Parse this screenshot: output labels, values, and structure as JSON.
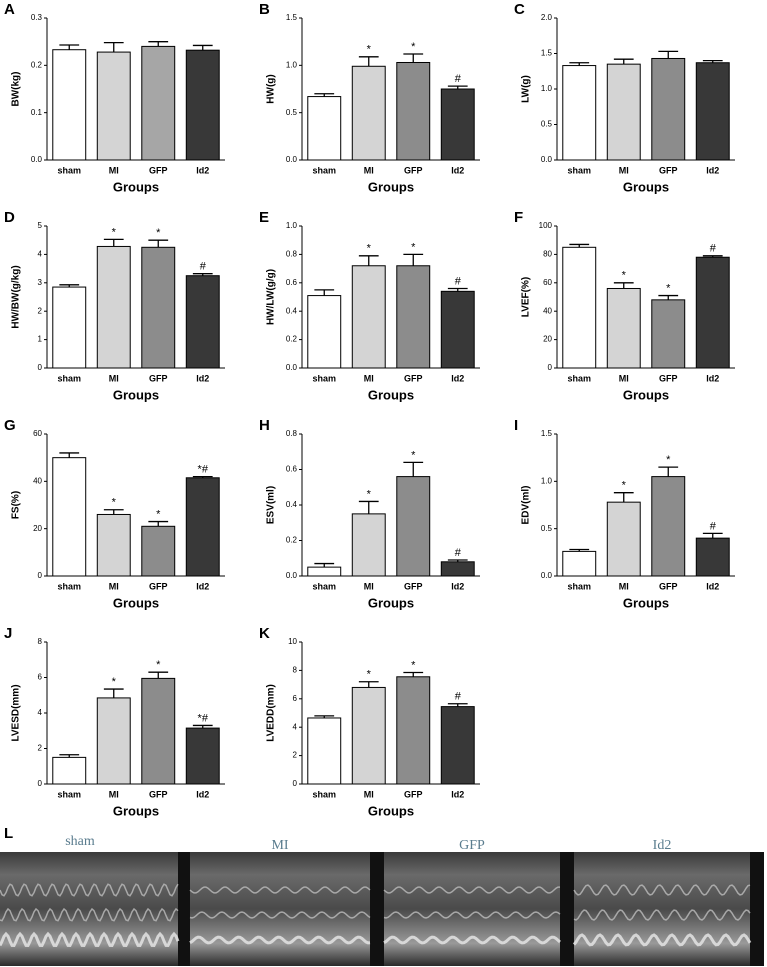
{
  "chart_data": [
    {
      "type": "bar",
      "panel": "A",
      "ylabel": "BW(kg)",
      "xlabel": "Groups",
      "categories": [
        "sham",
        "MI",
        "GFP",
        "Id2"
      ],
      "values": [
        0.233,
        0.228,
        0.24,
        0.232
      ],
      "errors": [
        0.01,
        0.02,
        0.01,
        0.01
      ],
      "annotations": [
        null,
        null,
        null,
        null
      ],
      "colors": [
        "#ffffff",
        "#d4d4d4",
        "#a6a6a6",
        "#383838"
      ],
      "ylim": [
        0,
        0.3
      ],
      "yticks": [
        {
          "value": 0,
          "label": "0.0"
        },
        0.1,
        0.2,
        0.3
      ]
    },
    {
      "type": "bar",
      "panel": "B",
      "ylabel": "HW(g)",
      "xlabel": "Groups",
      "categories": [
        "sham",
        "MI",
        "GFP",
        "Id2"
      ],
      "values": [
        0.67,
        0.99,
        1.03,
        0.75
      ],
      "errors": [
        0.03,
        0.1,
        0.09,
        0.03
      ],
      "annotations": [
        null,
        "*",
        "*",
        "#"
      ],
      "colors": [
        "#ffffff",
        "#d4d4d4",
        "#8c8c8c",
        "#383838"
      ],
      "ylim": [
        0,
        1.5
      ],
      "yticks": [
        {
          "value": 0,
          "label": "0.0"
        },
        0.5,
        {
          "value": 1,
          "label": "1.0"
        },
        1.5
      ]
    },
    {
      "type": "bar",
      "panel": "C",
      "ylabel": "LW(g)",
      "xlabel": "Groups",
      "categories": [
        "sham",
        "MI",
        "GFP",
        "Id2"
      ],
      "values": [
        1.33,
        1.35,
        1.43,
        1.37
      ],
      "errors": [
        0.04,
        0.07,
        0.1,
        0.03
      ],
      "annotations": [
        null,
        null,
        null,
        null
      ],
      "colors": [
        "#ffffff",
        "#d4d4d4",
        "#8c8c8c",
        "#383838"
      ],
      "ylim": [
        0,
        2
      ],
      "yticks": [
        {
          "value": 0,
          "label": "0.0"
        },
        0.5,
        {
          "value": 1,
          "label": "1.0"
        },
        1.5,
        {
          "value": 2,
          "label": "2.0"
        }
      ]
    },
    {
      "type": "bar",
      "panel": "D",
      "ylabel": "HW/BW(g/kg)",
      "xlabel": "Groups",
      "categories": [
        "sham",
        "MI",
        "GFP",
        "Id2"
      ],
      "values": [
        2.85,
        4.28,
        4.25,
        3.25
      ],
      "errors": [
        0.08,
        0.25,
        0.25,
        0.07
      ],
      "annotations": [
        null,
        "*",
        "*",
        "#"
      ],
      "colors": [
        "#ffffff",
        "#d4d4d4",
        "#8c8c8c",
        "#383838"
      ],
      "ylim": [
        0,
        5
      ],
      "yticks": [
        0,
        1,
        2,
        3,
        4,
        5
      ]
    },
    {
      "type": "bar",
      "panel": "E",
      "ylabel": "HW/LW(g/g)",
      "xlabel": "Groups",
      "categories": [
        "sham",
        "MI",
        "GFP",
        "Id2"
      ],
      "values": [
        0.51,
        0.72,
        0.72,
        0.54
      ],
      "errors": [
        0.04,
        0.07,
        0.08,
        0.02
      ],
      "annotations": [
        null,
        "*",
        "*",
        "#"
      ],
      "colors": [
        "#ffffff",
        "#d4d4d4",
        "#8c8c8c",
        "#383838"
      ],
      "ylim": [
        0,
        1
      ],
      "yticks": [
        {
          "value": 0,
          "label": "0.0"
        },
        0.2,
        0.4,
        0.6,
        0.8,
        {
          "value": 1,
          "label": "1.0"
        }
      ]
    },
    {
      "type": "bar",
      "panel": "F",
      "ylabel": "LVEF(%)",
      "xlabel": "Groups",
      "categories": [
        "sham",
        "MI",
        "GFP",
        "Id2"
      ],
      "values": [
        85,
        56,
        48,
        78
      ],
      "errors": [
        2,
        4,
        3,
        1
      ],
      "annotations": [
        null,
        "*",
        "*",
        "#"
      ],
      "colors": [
        "#ffffff",
        "#d4d4d4",
        "#8c8c8c",
        "#383838"
      ],
      "ylim": [
        0,
        100
      ],
      "yticks": [
        0,
        20,
        40,
        60,
        80,
        100
      ]
    },
    {
      "type": "bar",
      "panel": "G",
      "ylabel": "FS(%)",
      "xlabel": "Groups",
      "categories": [
        "sham",
        "MI",
        "GFP",
        "Id2"
      ],
      "values": [
        50,
        26,
        21,
        41.5
      ],
      "errors": [
        2,
        2,
        2,
        0.5
      ],
      "annotations": [
        null,
        "*",
        "*",
        "*#"
      ],
      "colors": [
        "#ffffff",
        "#d4d4d4",
        "#8c8c8c",
        "#383838"
      ],
      "ylim": [
        0,
        60
      ],
      "yticks": [
        0,
        20,
        40,
        60
      ]
    },
    {
      "type": "bar",
      "panel": "H",
      "ylabel": "ESV(ml)",
      "xlabel": "Groups",
      "categories": [
        "sham",
        "MI",
        "GFP",
        "Id2"
      ],
      "values": [
        0.05,
        0.35,
        0.56,
        0.08
      ],
      "errors": [
        0.02,
        0.07,
        0.08,
        0.01
      ],
      "annotations": [
        null,
        "*",
        "*",
        "#"
      ],
      "colors": [
        "#ffffff",
        "#d4d4d4",
        "#8c8c8c",
        "#383838"
      ],
      "ylim": [
        0,
        0.8
      ],
      "yticks": [
        {
          "value": 0,
          "label": "0.0"
        },
        0.2,
        0.4,
        0.6,
        0.8
      ]
    },
    {
      "type": "bar",
      "panel": "I",
      "ylabel": "EDV(ml)",
      "xlabel": "Groups",
      "categories": [
        "sham",
        "MI",
        "GFP",
        "Id2"
      ],
      "values": [
        0.26,
        0.78,
        1.05,
        0.4
      ],
      "errors": [
        0.02,
        0.1,
        0.1,
        0.05
      ],
      "annotations": [
        null,
        "*",
        "*",
        "#"
      ],
      "colors": [
        "#ffffff",
        "#d4d4d4",
        "#8c8c8c",
        "#383838"
      ],
      "ylim": [
        0,
        1.5
      ],
      "yticks": [
        {
          "value": 0,
          "label": "0.0"
        },
        0.5,
        {
          "value": 1,
          "label": "1.0"
        },
        1.5
      ]
    },
    {
      "type": "bar",
      "panel": "J",
      "ylabel": "LVESD(mm)",
      "xlabel": "Groups",
      "categories": [
        "sham",
        "MI",
        "GFP",
        "Id2"
      ],
      "values": [
        1.5,
        4.85,
        5.95,
        3.15
      ],
      "errors": [
        0.15,
        0.5,
        0.35,
        0.15
      ],
      "annotations": [
        null,
        "*",
        "*",
        "*#"
      ],
      "colors": [
        "#ffffff",
        "#d4d4d4",
        "#8c8c8c",
        "#383838"
      ],
      "ylim": [
        0,
        8
      ],
      "yticks": [
        0,
        2,
        4,
        6,
        8
      ]
    },
    {
      "type": "bar",
      "panel": "K",
      "ylabel": "LVEDD(mm)",
      "xlabel": "Groups",
      "categories": [
        "sham",
        "MI",
        "GFP",
        "Id2"
      ],
      "values": [
        4.65,
        6.8,
        7.55,
        5.45
      ],
      "errors": [
        0.15,
        0.4,
        0.3,
        0.2
      ],
      "annotations": [
        null,
        "*",
        "*",
        "#"
      ],
      "colors": [
        "#ffffff",
        "#d4d4d4",
        "#8c8c8c",
        "#383838"
      ],
      "ylim": [
        0,
        10
      ],
      "yticks": [
        0,
        2,
        4,
        6,
        8,
        10
      ]
    }
  ],
  "echo_panel": {
    "panel": "L",
    "views": [
      "sham",
      "MI",
      "GFP",
      "Id2"
    ]
  }
}
